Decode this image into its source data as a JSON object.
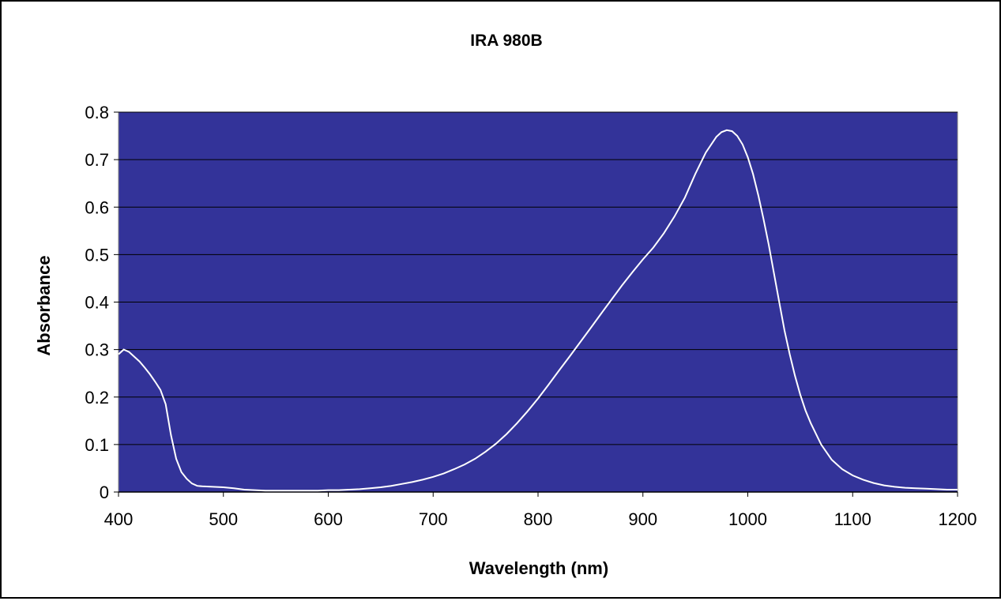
{
  "chart_data": {
    "type": "line",
    "title": "IRA 980B",
    "xlabel": "Wavelength (nm)",
    "ylabel": "Absorbance",
    "xlim": [
      400,
      1200
    ],
    "ylim": [
      0,
      0.8
    ],
    "x_ticks": [
      400,
      500,
      600,
      700,
      800,
      900,
      1000,
      1100,
      1200
    ],
    "y_ticks": [
      0,
      0.1,
      0.2,
      0.3,
      0.4,
      0.5,
      0.6,
      0.7,
      0.8
    ],
    "x_tick_labels": [
      "400",
      "500",
      "600",
      "700",
      "800",
      "900",
      "1000",
      "1100",
      "1200"
    ],
    "y_tick_labels": [
      "0",
      "0.1",
      "0.2",
      "0.3",
      "0.4",
      "0.5",
      "0.6",
      "0.7",
      "0.8"
    ],
    "grid": "horizontal",
    "legend": "none",
    "plot_background": "#333399",
    "line_color": "#ffffff",
    "series": [
      {
        "x": [
          400,
          405,
          410,
          415,
          420,
          425,
          430,
          435,
          440,
          445,
          450,
          455,
          460,
          465,
          470,
          475,
          480,
          490,
          500,
          510,
          520,
          530,
          540,
          550,
          560,
          570,
          580,
          590,
          600,
          610,
          620,
          630,
          640,
          650,
          660,
          670,
          680,
          690,
          700,
          710,
          720,
          730,
          740,
          750,
          760,
          770,
          780,
          790,
          800,
          810,
          820,
          830,
          840,
          850,
          860,
          870,
          880,
          890,
          900,
          910,
          920,
          930,
          940,
          950,
          960,
          970,
          975,
          980,
          985,
          990,
          995,
          1000,
          1005,
          1010,
          1015,
          1020,
          1025,
          1030,
          1035,
          1040,
          1045,
          1050,
          1055,
          1060,
          1070,
          1080,
          1090,
          1100,
          1110,
          1120,
          1130,
          1140,
          1150,
          1160,
          1170,
          1180,
          1190,
          1200
        ],
        "y": [
          0.29,
          0.3,
          0.295,
          0.285,
          0.275,
          0.262,
          0.248,
          0.232,
          0.215,
          0.185,
          0.12,
          0.07,
          0.042,
          0.028,
          0.018,
          0.013,
          0.012,
          0.011,
          0.01,
          0.008,
          0.005,
          0.004,
          0.003,
          0.003,
          0.003,
          0.003,
          0.003,
          0.003,
          0.004,
          0.004,
          0.005,
          0.006,
          0.008,
          0.01,
          0.013,
          0.017,
          0.021,
          0.026,
          0.032,
          0.039,
          0.048,
          0.058,
          0.07,
          0.085,
          0.102,
          0.122,
          0.145,
          0.17,
          0.197,
          0.226,
          0.256,
          0.285,
          0.315,
          0.345,
          0.375,
          0.405,
          0.435,
          0.463,
          0.49,
          0.515,
          0.545,
          0.58,
          0.62,
          0.67,
          0.715,
          0.748,
          0.758,
          0.762,
          0.76,
          0.75,
          0.732,
          0.705,
          0.67,
          0.625,
          0.575,
          0.52,
          0.46,
          0.4,
          0.34,
          0.29,
          0.245,
          0.205,
          0.172,
          0.145,
          0.1,
          0.068,
          0.048,
          0.035,
          0.026,
          0.019,
          0.014,
          0.011,
          0.009,
          0.008,
          0.007,
          0.006,
          0.005,
          0.005
        ]
      }
    ]
  }
}
